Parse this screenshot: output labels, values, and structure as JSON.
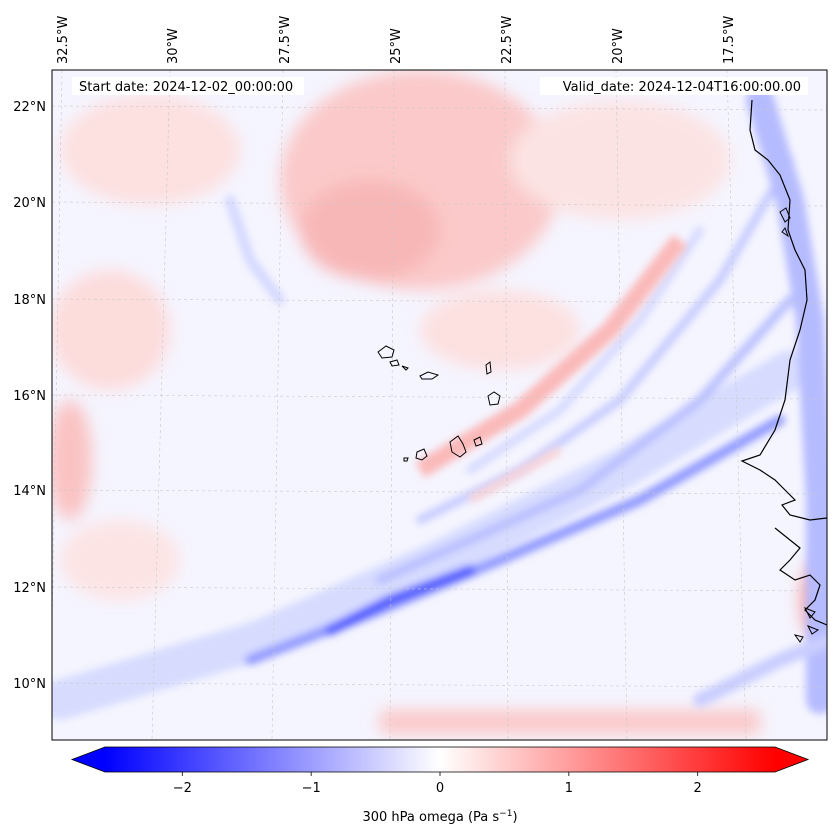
{
  "header": {
    "start_label": "Start date: 2024-12-02_00:00:00",
    "valid_label": "Valid_date: 2024-12-04T16:00:00.00"
  },
  "axes": {
    "lon_labels": [
      "32.5°W",
      "30°W",
      "27.5°W",
      "25°W",
      "22.5°W",
      "20°W",
      "17.5°W"
    ],
    "lat_labels": [
      "22°N",
      "20°N",
      "18°N",
      "16°N",
      "14°N",
      "12°N",
      "10°N"
    ]
  },
  "colorbar": {
    "ticks": [
      -2,
      -1,
      0,
      1,
      2
    ],
    "tick_labels": [
      "−2",
      "−1",
      "0",
      "1",
      "2"
    ],
    "range": [
      -2.6,
      2.6
    ],
    "label_main": "300 hPa omega (Pa s",
    "label_exp": "−1",
    "label_tail": ")",
    "colors": {
      "negative": "#0000ff",
      "zero": "#ffffff",
      "positive": "#ff0000"
    }
  },
  "map": {
    "lon_range": [
      -32.75,
      -15.1
    ],
    "lat_range": [
      8.9,
      22.8
    ],
    "field": "300 hPa omega",
    "units": "Pa s-1",
    "projection": "Lambert conformal",
    "features": [
      "Cape Verde islands",
      "West African coastline (Senegal, Gambia, Guinea-Bissau)"
    ]
  }
}
